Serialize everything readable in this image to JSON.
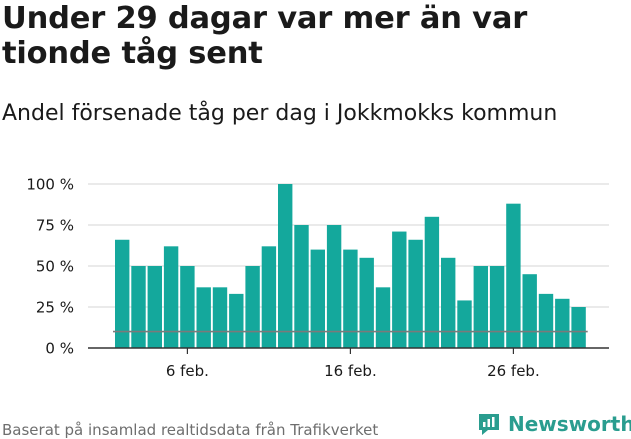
{
  "header": {
    "title": "Under 29 dagar var mer än var tionde tåg sent",
    "subtitle": "Andel försenade tåg per dag i Jokkmokks kommun"
  },
  "footer": {
    "source": "Baserat på insamlad realtidsdata från Trafikverket",
    "brand": "Newsworthy"
  },
  "colors": {
    "bar": "#14a89c",
    "reference_line": "#7a7a7a",
    "grid": "#dddddd",
    "brand": "#2a9d8f"
  },
  "chart_data": {
    "type": "bar",
    "x_start_day": 2,
    "values": [
      66,
      50,
      50,
      62,
      50,
      37,
      37,
      33,
      50,
      62,
      100,
      75,
      60,
      75,
      60,
      55,
      37,
      71,
      66,
      80,
      55,
      29,
      50,
      50,
      88,
      45,
      33,
      30,
      25
    ],
    "reference_value": 10,
    "ylim": [
      0,
      100
    ],
    "yticks": [
      0,
      25,
      50,
      75,
      100
    ],
    "ytick_labels": [
      "0 %",
      "25 %",
      "50 %",
      "75 %",
      "100 %"
    ],
    "xticks": [
      6,
      16,
      26
    ],
    "xtick_labels": [
      "6 feb.",
      "16 feb.",
      "26 feb."
    ],
    "grid": true
  }
}
